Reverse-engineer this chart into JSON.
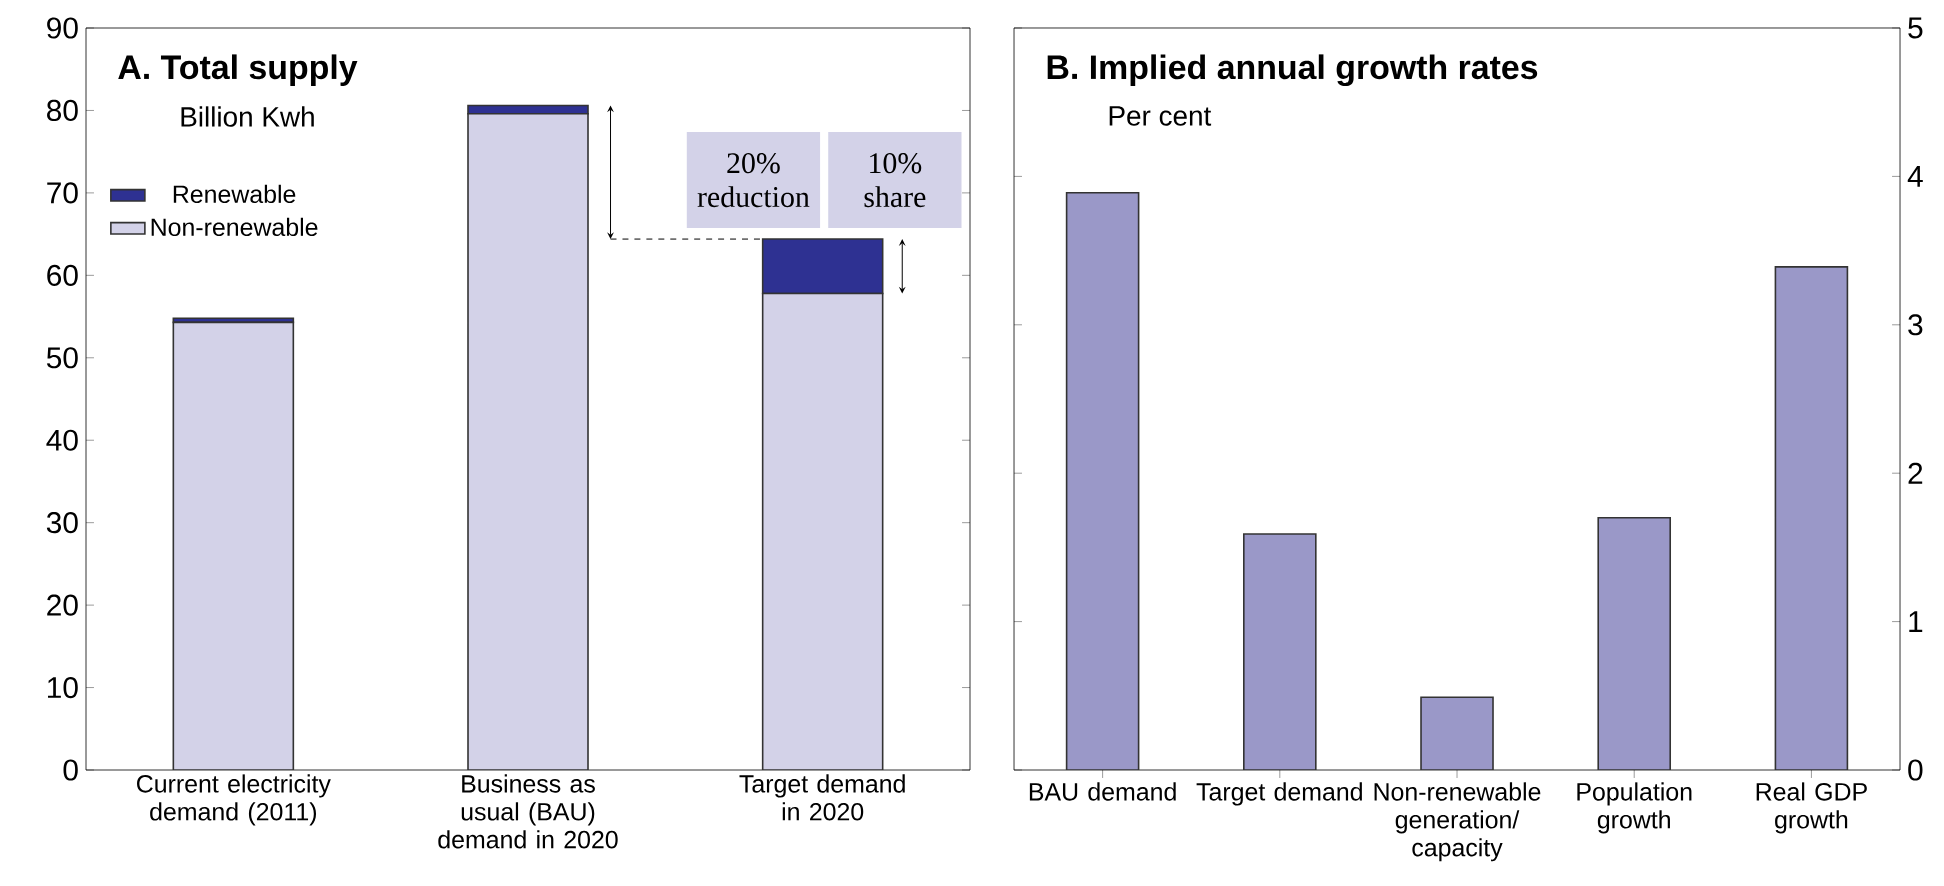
{
  "chart_data": [
    {
      "type": "bar",
      "stacked": true,
      "title": "A. Total supply",
      "subtitle": "Billion Kwh",
      "categories": [
        "Current electricity demand (2011)",
        "Business as usual (BAU) demand in 2020",
        "Target demand in 2020"
      ],
      "series": [
        {
          "name": "Non-renewable",
          "color": "#d3d2e8",
          "values": [
            54.3,
            79.6,
            57.8
          ]
        },
        {
          "name": "Renewable",
          "color": "#2e3192",
          "values": [
            0.5,
            1.0,
            6.6
          ]
        }
      ],
      "ylim": [
        0,
        90
      ],
      "yticks": [
        0,
        10,
        20,
        30,
        40,
        50,
        60,
        70,
        80,
        90
      ],
      "legend": "top left",
      "annotations": [
        "20% reduction",
        "10% share"
      ]
    },
    {
      "type": "bar",
      "title": "B. Implied annual growth rates",
      "subtitle": "Per cent",
      "categories": [
        "BAU demand",
        "Target demand",
        "Non-renewable generation/ capacity",
        "Population growth",
        "Real GDP growth"
      ],
      "values": [
        3.89,
        1.59,
        0.49,
        1.7,
        3.39
      ],
      "color": "#9a98c8",
      "ylim": [
        0,
        5
      ],
      "yticks": [
        0,
        1,
        2,
        3,
        4,
        5
      ]
    }
  ]
}
